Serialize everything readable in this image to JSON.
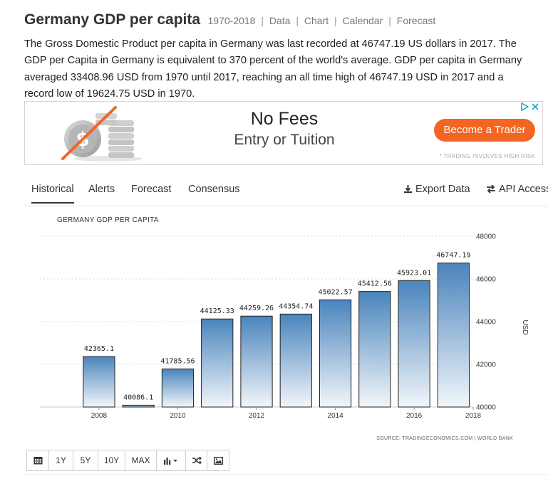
{
  "header": {
    "title": "Germany GDP per capita",
    "range": "1970-2018",
    "links": [
      "Data",
      "Chart",
      "Calendar",
      "Forecast"
    ]
  },
  "description": {
    "lines": [
      "The Gross Domestic Product per capita in Germany was last recorded at 46747.19 US dollars in 2017. The",
      "GDP per Capita in Germany is equivalent to 370 percent of the world's average. GDP per capita in Germany",
      "averaged 33408.96 USD from 1970 until 2017, reaching an all time high of 46747.19 USD in 2017 and a",
      "record low of 19624.75 USD in 1970."
    ]
  },
  "ad": {
    "headline": "No Fees",
    "subline": "Entry or Tuition",
    "cta": "Become a Trader",
    "disclaimer": "* TRADING INVOLVES HIGH RISK",
    "cta_color": "#f26522"
  },
  "tabs": [
    {
      "label": "Historical",
      "active": true
    },
    {
      "label": "Alerts",
      "active": false
    },
    {
      "label": "Forecast",
      "active": false
    },
    {
      "label": "Consensus",
      "active": false
    }
  ],
  "tools": {
    "export": "Export Data",
    "api": "API Access",
    "export_icon": "download-icon",
    "api_icon": "transfer-icon"
  },
  "chart_data": {
    "type": "bar",
    "title": "GERMANY GDP PER CAPITA",
    "ylabel": "USD",
    "ylim": [
      40000,
      48000
    ],
    "yticks": [
      "48000",
      "46000",
      "44000",
      "42000",
      "40000"
    ],
    "xticks": [
      "2008",
      "2010",
      "2012",
      "2014",
      "2016",
      "2018"
    ],
    "categories": [
      "2008",
      "2009",
      "2010",
      "2011",
      "2012",
      "2013",
      "2014",
      "2015",
      "2016",
      "2017"
    ],
    "values": [
      42365.1,
      40086.1,
      41785.56,
      44125.33,
      44259.26,
      44354.74,
      45022.57,
      45412.56,
      45923.01,
      46747.19
    ],
    "labels": [
      "42365.1",
      "40086.1",
      "41785.56",
      "44125.33",
      "44259.26",
      "44354.74",
      "45022.57",
      "45412.56",
      "45923.01",
      "46747.19"
    ],
    "source": "SOURCE: TRADINGECONOMICS.COM | WORLD BANK",
    "grid": true,
    "axis_position": "right",
    "bar_color_top": "#4a84bc",
    "bar_color_bottom": "#f2f6fa"
  },
  "controls": {
    "buttons": [
      {
        "label": "",
        "name": "calendar-button",
        "icon": "calendar-icon"
      },
      {
        "label": "1Y",
        "name": "range-1y-button"
      },
      {
        "label": "5Y",
        "name": "range-5y-button"
      },
      {
        "label": "10Y",
        "name": "range-10y-button"
      },
      {
        "label": "MAX",
        "name": "range-max-button"
      },
      {
        "label": "",
        "name": "chart-type-button",
        "icon": "bar-chart-icon"
      },
      {
        "label": "",
        "name": "shuffle-button",
        "icon": "shuffle-icon"
      },
      {
        "label": "",
        "name": "image-button",
        "icon": "image-icon"
      }
    ]
  }
}
